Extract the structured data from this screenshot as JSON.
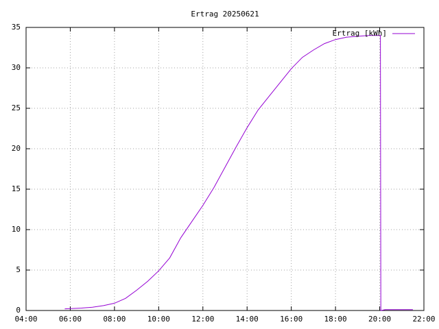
{
  "chart_data": {
    "type": "line",
    "title": "Ertrag 20250621",
    "x": [
      "05:45",
      "06:30",
      "07:00",
      "07:30",
      "08:00",
      "08:30",
      "09:00",
      "09:30",
      "10:00",
      "10:30",
      "11:00",
      "11:30",
      "12:00",
      "12:30",
      "13:00",
      "13:30",
      "14:00",
      "14:30",
      "15:00",
      "15:30",
      "16:00",
      "16:30",
      "17:00",
      "17:30",
      "18:00",
      "18:30",
      "19:00",
      "19:30",
      "20:02",
      "20:03",
      "20:15",
      "21:30"
    ],
    "series": [
      {
        "name": "Ertrag [kWh]",
        "color": "#9400d3",
        "values": [
          0.2,
          0.3,
          0.4,
          0.6,
          0.9,
          1.5,
          2.5,
          3.6,
          4.9,
          6.5,
          9.0,
          11.0,
          13.0,
          15.2,
          17.7,
          20.2,
          22.6,
          24.8,
          26.5,
          28.2,
          29.9,
          31.3,
          32.2,
          33.0,
          33.5,
          33.8,
          33.9,
          34.0,
          34.0,
          0,
          0.1,
          0.1
        ]
      }
    ],
    "xlim": [
      "04:00",
      "22:00"
    ],
    "xticks": [
      "04:00",
      "06:00",
      "08:00",
      "10:00",
      "12:00",
      "14:00",
      "16:00",
      "18:00",
      "20:00",
      "22:00"
    ],
    "ylim": [
      0,
      35
    ],
    "yticks": [
      0,
      5,
      10,
      15,
      20,
      25,
      30,
      35
    ],
    "grid": true,
    "legend": "top-right"
  }
}
